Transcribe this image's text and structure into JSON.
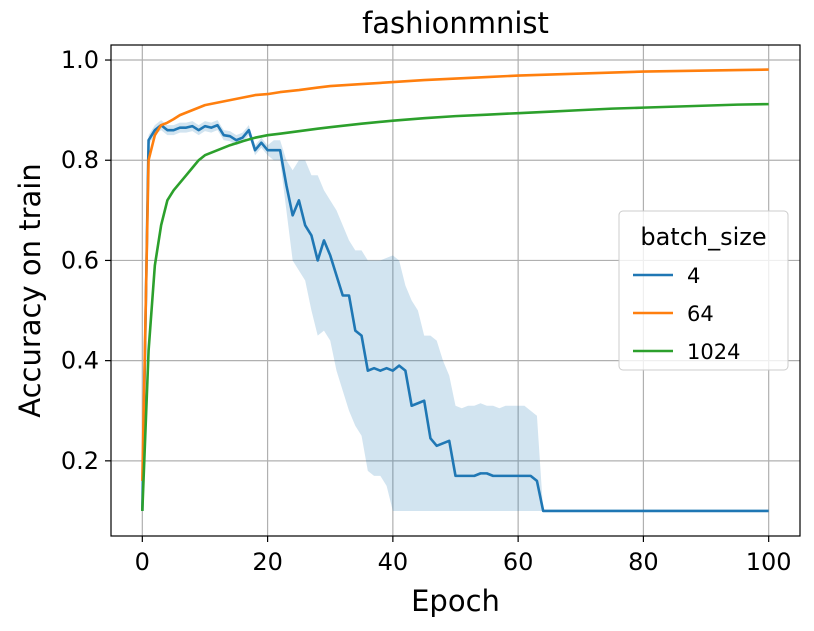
{
  "chart_data": {
    "type": "line",
    "title": "fashionmnist",
    "xlabel": "Epoch",
    "ylabel": "Accuracy on train",
    "xlim": [
      -5,
      105
    ],
    "ylim": [
      0.05,
      1.03
    ],
    "xticks": [
      0,
      20,
      40,
      60,
      80,
      100
    ],
    "yticks": [
      0.2,
      0.4,
      0.6,
      0.8,
      1.0
    ],
    "xtick_labels": [
      "0",
      "20",
      "40",
      "60",
      "80",
      "100"
    ],
    "ytick_labels": [
      "0.2",
      "0.4",
      "0.6",
      "0.8",
      "1.0"
    ],
    "grid": true,
    "legend": {
      "title": "batch_size",
      "placement": "center-right"
    },
    "series": [
      {
        "name": "4",
        "color": "#1f77b4",
        "band_color": "#1f77b4",
        "x": [
          0,
          1,
          2,
          3,
          4,
          5,
          6,
          7,
          8,
          9,
          10,
          11,
          12,
          13,
          14,
          15,
          16,
          17,
          18,
          19,
          20,
          21,
          22,
          23,
          24,
          25,
          26,
          27,
          28,
          29,
          30,
          31,
          32,
          33,
          34,
          35,
          36,
          37,
          38,
          39,
          40,
          41,
          42,
          43,
          44,
          45,
          46,
          47,
          48,
          49,
          50,
          51,
          52,
          53,
          54,
          55,
          56,
          57,
          58,
          59,
          60,
          61,
          62,
          63,
          64,
          100
        ],
        "y": [
          0.1,
          0.84,
          0.86,
          0.87,
          0.86,
          0.86,
          0.865,
          0.865,
          0.868,
          0.86,
          0.868,
          0.865,
          0.87,
          0.85,
          0.848,
          0.84,
          0.845,
          0.86,
          0.82,
          0.835,
          0.82,
          0.82,
          0.82,
          0.75,
          0.69,
          0.72,
          0.67,
          0.65,
          0.6,
          0.64,
          0.61,
          0.57,
          0.53,
          0.53,
          0.46,
          0.45,
          0.38,
          0.385,
          0.38,
          0.385,
          0.38,
          0.39,
          0.38,
          0.31,
          0.315,
          0.32,
          0.245,
          0.23,
          0.235,
          0.24,
          0.17,
          0.17,
          0.17,
          0.17,
          0.175,
          0.175,
          0.17,
          0.17,
          0.17,
          0.17,
          0.17,
          0.17,
          0.17,
          0.16,
          0.1,
          0.1
        ],
        "band_lower": [
          0.1,
          0.83,
          0.85,
          0.86,
          0.85,
          0.85,
          0.855,
          0.855,
          0.858,
          0.85,
          0.858,
          0.855,
          0.86,
          0.84,
          0.838,
          0.83,
          0.835,
          0.85,
          0.81,
          0.825,
          0.81,
          0.8,
          0.8,
          0.7,
          0.6,
          0.58,
          0.56,
          0.5,
          0.45,
          0.46,
          0.44,
          0.38,
          0.34,
          0.3,
          0.27,
          0.25,
          0.18,
          0.17,
          0.17,
          0.15,
          0.1,
          0.1,
          0.1,
          0.1,
          0.1,
          0.1,
          0.1,
          0.1,
          0.1,
          0.1,
          0.1,
          0.1,
          0.1,
          0.1,
          0.1,
          0.1,
          0.1,
          0.1,
          0.1,
          0.1,
          0.1,
          0.1,
          0.1,
          0.1,
          0.1,
          0.1
        ],
        "band_upper": [
          0.1,
          0.85,
          0.87,
          0.88,
          0.87,
          0.87,
          0.875,
          0.875,
          0.878,
          0.87,
          0.878,
          0.875,
          0.88,
          0.86,
          0.858,
          0.85,
          0.855,
          0.87,
          0.83,
          0.845,
          0.83,
          0.84,
          0.84,
          0.8,
          0.78,
          0.8,
          0.8,
          0.77,
          0.77,
          0.74,
          0.72,
          0.7,
          0.67,
          0.64,
          0.62,
          0.62,
          0.6,
          0.6,
          0.6,
          0.605,
          0.61,
          0.6,
          0.55,
          0.52,
          0.5,
          0.45,
          0.45,
          0.44,
          0.4,
          0.37,
          0.31,
          0.305,
          0.31,
          0.31,
          0.315,
          0.31,
          0.31,
          0.305,
          0.31,
          0.31,
          0.31,
          0.31,
          0.3,
          0.29,
          0.1,
          0.1
        ]
      },
      {
        "name": "64",
        "color": "#ff7f0e",
        "x": [
          0,
          1,
          2,
          3,
          4,
          5,
          6,
          7,
          8,
          9,
          10,
          12,
          14,
          16,
          18,
          20,
          22,
          25,
          28,
          30,
          35,
          40,
          45,
          50,
          55,
          60,
          65,
          70,
          75,
          80,
          85,
          90,
          95,
          100
        ],
        "y": [
          0.16,
          0.8,
          0.85,
          0.87,
          0.875,
          0.882,
          0.89,
          0.895,
          0.9,
          0.905,
          0.91,
          0.915,
          0.92,
          0.925,
          0.93,
          0.932,
          0.936,
          0.94,
          0.945,
          0.948,
          0.952,
          0.956,
          0.96,
          0.963,
          0.966,
          0.969,
          0.971,
          0.973,
          0.975,
          0.977,
          0.978,
          0.979,
          0.98,
          0.981
        ]
      },
      {
        "name": "1024",
        "color": "#2ca02c",
        "x": [
          0,
          1,
          2,
          3,
          4,
          5,
          6,
          7,
          8,
          9,
          10,
          12,
          14,
          16,
          18,
          20,
          22,
          25,
          28,
          30,
          35,
          40,
          45,
          50,
          55,
          60,
          65,
          70,
          75,
          80,
          85,
          90,
          95,
          100
        ],
        "y": [
          0.1,
          0.42,
          0.59,
          0.67,
          0.72,
          0.74,
          0.755,
          0.77,
          0.785,
          0.8,
          0.81,
          0.82,
          0.83,
          0.838,
          0.845,
          0.85,
          0.853,
          0.858,
          0.863,
          0.866,
          0.873,
          0.879,
          0.884,
          0.888,
          0.891,
          0.894,
          0.897,
          0.9,
          0.903,
          0.905,
          0.907,
          0.909,
          0.911,
          0.912
        ]
      }
    ]
  }
}
